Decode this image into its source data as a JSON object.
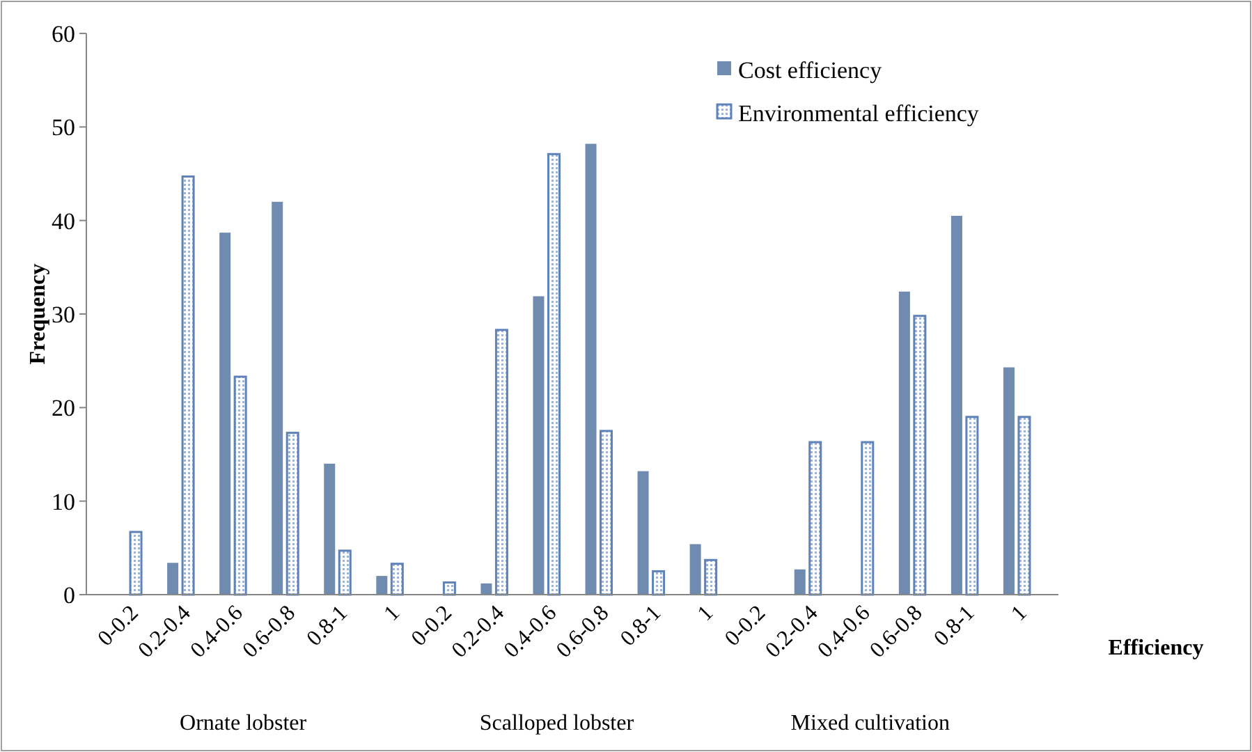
{
  "chart_data": {
    "type": "bar",
    "xlabel": "Efficiency",
    "ylabel": "Frequency",
    "categories": [
      "0-0.2",
      "0.2-0.4",
      "0.4-0.6",
      "0.6-0.8",
      "0.8-1",
      "1",
      "0-0.2",
      "0.2-0.4",
      "0.4-0.6",
      "0.6-0.8",
      "0.8-1",
      "1",
      "0-0.2",
      "0.2-0.4",
      "0.4-0.6",
      "0.6-0.8",
      "0.8-1",
      "1"
    ],
    "series": [
      {
        "name": "Cost efficiency",
        "color": "#6f8bb0",
        "values": [
          0,
          3.4,
          38.7,
          42,
          14,
          2,
          0,
          1.2,
          31.9,
          48.2,
          13.2,
          5.4,
          0,
          2.7,
          0,
          32.4,
          40.5,
          24.3
        ]
      },
      {
        "name": "Environmental efficiency",
        "color": "#5f82b8",
        "type": "bar",
        "values": [
          6.7,
          44.7,
          23.3,
          17.3,
          4.7,
          3.3,
          1.3,
          28.3,
          47.1,
          17.5,
          2.5,
          3.7,
          0,
          16.3,
          16.3,
          29.8,
          19,
          19
        ]
      }
    ],
    "ylim": [
      0,
      60
    ],
    "yticks": [
      0,
      10,
      20,
      30,
      40,
      50,
      60
    ],
    "grid": false,
    "legend": "top right",
    "annotations": [
      "Ornate lobster",
      "Scalloped lobster",
      "Mixed cultivation"
    ]
  }
}
